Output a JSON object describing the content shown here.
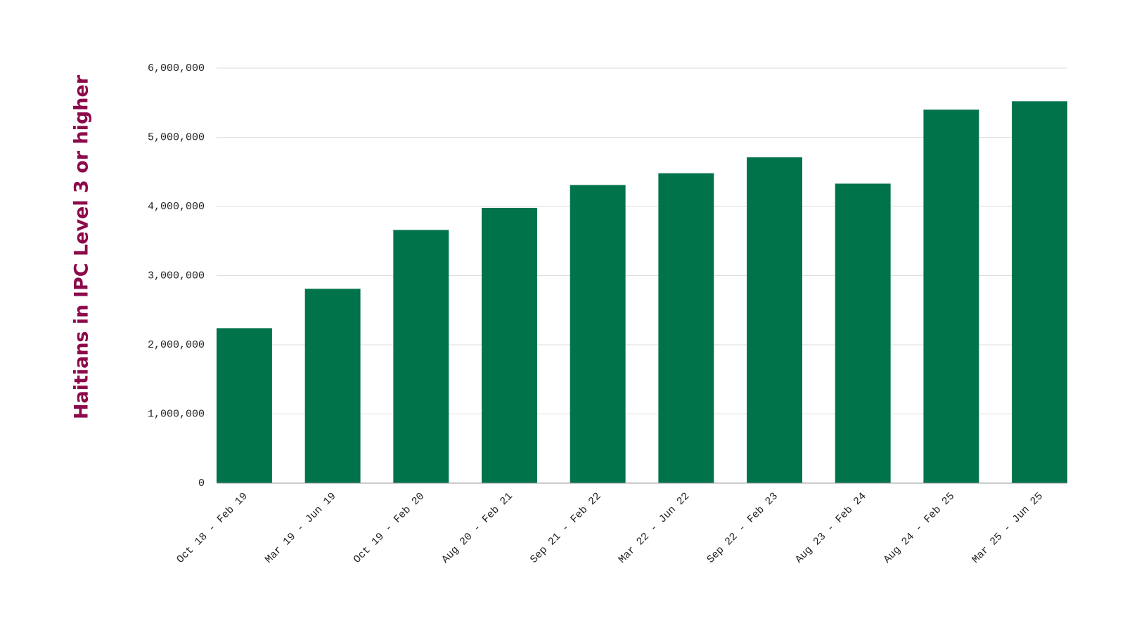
{
  "chart_data": {
    "type": "bar",
    "y_label": "Haitians in IPC Level 3 or higher",
    "categories": [
      "Oct 18 - Feb 19",
      "Mar 19 - Jun 19",
      "Oct 19 - Feb 20",
      "Aug 20 - Feb 21",
      "Sep 21 - Feb 22",
      "Mar 22 - Jun 22",
      "Sep 22 - Feb 23",
      "Aug 23 - Feb 24",
      "Aug 24 - Feb 25",
      "Mar 25 - Jun 25"
    ],
    "values": [
      2240000,
      2810000,
      3660000,
      3980000,
      4310000,
      4480000,
      4710000,
      4330000,
      5400000,
      5520000
    ],
    "color": "#00734b",
    "title_color": "#8c0a4a",
    "ylim": [
      0,
      6000000
    ],
    "yticks": [
      0,
      {
        "value": 1000000,
        "label": "1,000,000"
      },
      {
        "value": 2000000,
        "label": "2,000,000"
      },
      {
        "value": 3000000,
        "label": "3,000,000"
      },
      {
        "value": 4000000,
        "label": "4,000,000"
      },
      {
        "value": 5000000,
        "label": "5,000,000"
      },
      {
        "value": 6000000,
        "label": "6,000,000"
      }
    ],
    "grid": true
  }
}
